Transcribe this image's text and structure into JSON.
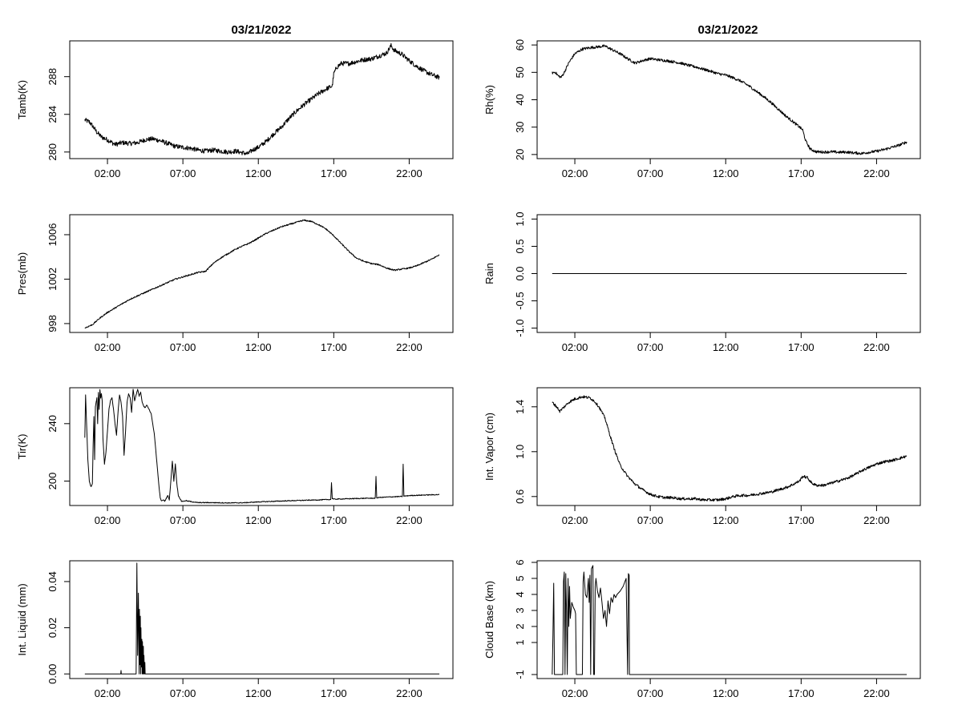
{
  "figure": {
    "columns": [
      {
        "title": "03/21/2022"
      },
      {
        "title": "03/21/2022"
      }
    ]
  },
  "colors": {
    "line": "#000000",
    "frame": "#000000",
    "background": "#ffffff"
  },
  "chart_data": [
    {
      "id": "tamb",
      "column": 0,
      "row": 0,
      "type": "line",
      "title": "03/21/2022",
      "ylabel": "Tamb(K)",
      "xlabel": "",
      "xlim": [
        -0.5,
        24.9
      ],
      "ylim": [
        279.3,
        291.8
      ],
      "xticks": [
        2,
        7,
        12,
        17,
        22
      ],
      "xtick_labels": [
        "02:00",
        "07:00",
        "12:00",
        "17:00",
        "22:00"
      ],
      "yticks": [
        280,
        284,
        288
      ],
      "ytick_labels": [
        "280",
        "284",
        "288"
      ],
      "x": [
        0.5,
        0.8,
        1.0,
        1.3,
        1.6,
        2.0,
        2.5,
        3.0,
        3.5,
        4.0,
        4.5,
        5.0,
        5.5,
        6.0,
        6.5,
        7.0,
        7.5,
        8.0,
        8.5,
        9.0,
        9.5,
        10.0,
        10.5,
        11.0,
        11.3,
        11.6,
        12.0,
        12.5,
        13.0,
        13.5,
        14.0,
        14.5,
        15.0,
        15.5,
        16.0,
        16.5,
        16.9,
        17.0,
        17.2,
        17.5,
        18.0,
        18.5,
        19.0,
        19.5,
        20.0,
        20.5,
        20.8,
        21.0,
        21.5,
        22.0,
        22.5,
        23.0,
        23.5,
        24.0
      ],
      "y": [
        283.4,
        283.2,
        282.8,
        282.1,
        281.6,
        281.3,
        280.8,
        281.0,
        280.9,
        281.0,
        281.3,
        281.4,
        281.2,
        280.9,
        280.6,
        280.5,
        280.4,
        280.2,
        280.1,
        280.2,
        280.1,
        280.0,
        280.1,
        279.9,
        279.8,
        280.2,
        280.5,
        281.1,
        281.9,
        282.6,
        283.5,
        284.3,
        285.0,
        285.6,
        286.2,
        286.7,
        287.0,
        288.3,
        289.0,
        289.4,
        289.4,
        289.6,
        289.8,
        289.9,
        290.2,
        290.5,
        291.3,
        290.8,
        290.4,
        289.7,
        289.1,
        288.6,
        288.2,
        287.9
      ],
      "noise": 0.25
    },
    {
      "id": "rh",
      "column": 1,
      "row": 0,
      "type": "line",
      "title": "03/21/2022",
      "ylabel": "Rh(%)",
      "xlabel": "",
      "xlim": [
        -0.5,
        24.9
      ],
      "ylim": [
        18.5,
        61.5
      ],
      "xticks": [
        2,
        7,
        12,
        17,
        22
      ],
      "xtick_labels": [
        "02:00",
        "07:00",
        "12:00",
        "17:00",
        "22:00"
      ],
      "yticks": [
        20,
        30,
        40,
        50,
        60
      ],
      "ytick_labels": [
        "20",
        "30",
        "40",
        "50",
        "60"
      ],
      "x": [
        0.5,
        0.7,
        0.9,
        1.1,
        1.3,
        1.6,
        2.0,
        2.5,
        3.0,
        3.5,
        4.0,
        4.5,
        5.0,
        5.5,
        6.0,
        6.5,
        7.0,
        7.5,
        8.0,
        8.5,
        9.0,
        9.5,
        10.0,
        10.5,
        11.0,
        11.5,
        12.0,
        12.5,
        13.0,
        13.5,
        14.0,
        14.5,
        15.0,
        15.5,
        16.0,
        16.5,
        16.9,
        17.1,
        17.3,
        17.6,
        18.0,
        18.5,
        19.0,
        19.5,
        20.0,
        20.5,
        21.0,
        21.5,
        22.0,
        22.5,
        23.0,
        23.5,
        24.0
      ],
      "y": [
        49.8,
        50.1,
        48.7,
        48.2,
        50.0,
        53.5,
        56.8,
        58.5,
        59.0,
        59.3,
        59.6,
        58.2,
        56.8,
        55.0,
        53.4,
        54.3,
        55.0,
        54.6,
        54.3,
        53.9,
        53.4,
        52.6,
        52.0,
        51.2,
        50.4,
        49.5,
        49.0,
        48.0,
        46.8,
        45.2,
        43.2,
        41.2,
        39.0,
        36.5,
        34.0,
        31.8,
        30.0,
        29.0,
        25.0,
        22.0,
        21.0,
        20.9,
        21.0,
        20.8,
        20.9,
        20.6,
        20.4,
        20.8,
        21.2,
        21.8,
        22.6,
        23.4,
        24.6
      ],
      "noise": 0.5
    },
    {
      "id": "pres",
      "column": 0,
      "row": 1,
      "type": "line",
      "ylabel": "Pres(mb)",
      "xlabel": "",
      "xlim": [
        -0.5,
        24.9
      ],
      "ylim": [
        997.2,
        1007.8
      ],
      "xticks": [
        2,
        7,
        12,
        17,
        22
      ],
      "xtick_labels": [
        "02:00",
        "07:00",
        "12:00",
        "17:00",
        "22:00"
      ],
      "yticks": [
        998,
        1002,
        1006
      ],
      "ytick_labels": [
        "998",
        "1002",
        "1006"
      ],
      "x": [
        0.5,
        1.0,
        1.5,
        2.0,
        2.5,
        3.0,
        3.5,
        4.0,
        4.5,
        5.0,
        5.5,
        6.0,
        6.5,
        7.0,
        7.5,
        8.0,
        8.5,
        9.0,
        9.5,
        10.0,
        10.5,
        11.0,
        11.5,
        12.0,
        12.5,
        13.0,
        13.5,
        14.0,
        14.5,
        15.0,
        15.5,
        16.0,
        16.5,
        17.0,
        17.5,
        18.0,
        18.5,
        19.0,
        19.5,
        20.0,
        20.5,
        21.0,
        21.5,
        22.0,
        22.5,
        23.0,
        23.5,
        24.0
      ],
      "y": [
        997.6,
        997.9,
        998.5,
        999.0,
        999.4,
        999.8,
        1000.2,
        1000.5,
        1000.8,
        1001.1,
        1001.4,
        1001.7,
        1002.0,
        1002.2,
        1002.4,
        1002.6,
        1002.7,
        1003.4,
        1003.9,
        1004.3,
        1004.7,
        1005.0,
        1005.3,
        1005.7,
        1006.1,
        1006.4,
        1006.7,
        1006.9,
        1007.1,
        1007.3,
        1007.2,
        1006.9,
        1006.5,
        1005.9,
        1005.2,
        1004.5,
        1003.9,
        1003.6,
        1003.4,
        1003.3,
        1003.0,
        1002.8,
        1002.9,
        1003.0,
        1003.2,
        1003.5,
        1003.8,
        1004.2
      ],
      "noise": 0.06
    },
    {
      "id": "rain",
      "column": 1,
      "row": 1,
      "type": "line",
      "ylabel": "Rain",
      "xlabel": "",
      "xlim": [
        -0.5,
        24.9
      ],
      "ylim": [
        -1.08,
        1.08
      ],
      "xticks": [
        2,
        7,
        12,
        17,
        22
      ],
      "xtick_labels": [
        "02:00",
        "07:00",
        "12:00",
        "17:00",
        "22:00"
      ],
      "yticks": [
        -1.0,
        -0.5,
        0.0,
        0.5,
        1.0
      ],
      "ytick_labels": [
        "-1.0",
        "-0.5",
        "0.0",
        "0.5",
        "1.0"
      ],
      "x": [
        0.5,
        24.0
      ],
      "y": [
        0.0,
        0.0
      ],
      "noise": 0
    },
    {
      "id": "tir",
      "column": 0,
      "row": 2,
      "type": "line",
      "ylabel": "Tir(K)",
      "xlabel": "",
      "xlim": [
        -0.5,
        24.9
      ],
      "ylim": [
        183,
        265
      ],
      "xticks": [
        2,
        7,
        12,
        17,
        22
      ],
      "xtick_labels": [
        "02:00",
        "07:00",
        "12:00",
        "17:00",
        "22:00"
      ],
      "yticks": [
        200,
        240
      ],
      "ytick_labels": [
        "200",
        "240"
      ],
      "x": [
        0.5,
        0.55,
        0.6,
        0.7,
        0.8,
        0.9,
        1.0,
        1.05,
        1.1,
        1.15,
        1.2,
        1.3,
        1.35,
        1.4,
        1.45,
        1.5,
        1.55,
        1.6,
        1.65,
        1.7,
        1.8,
        1.9,
        2.0,
        2.1,
        2.2,
        2.3,
        2.4,
        2.5,
        2.6,
        2.7,
        2.8,
        2.9,
        3.0,
        3.1,
        3.2,
        3.3,
        3.4,
        3.5,
        3.6,
        3.7,
        3.8,
        3.9,
        4.0,
        4.1,
        4.2,
        4.3,
        4.4,
        4.5,
        4.6,
        4.7,
        4.8,
        4.9,
        5.0,
        5.1,
        5.2,
        5.3,
        5.4,
        5.5,
        5.6,
        5.7,
        5.8,
        5.9,
        6.0,
        6.1,
        6.2,
        6.3,
        6.4,
        6.5,
        6.6,
        6.7,
        6.8,
        6.9,
        7.0,
        7.1,
        7.2,
        7.3,
        7.4,
        7.5,
        7.6,
        7.7,
        7.8,
        7.85,
        8.0,
        9.0,
        10.0,
        11.0,
        12.0,
        13.0,
        14.0,
        15.0,
        16.0,
        16.8,
        16.85,
        16.9,
        17.0,
        18.0,
        19.0,
        19.75,
        19.8,
        19.85,
        20.0,
        21.0,
        21.55,
        21.6,
        21.65,
        22.0,
        23.0,
        24.0
      ],
      "y": [
        230,
        260,
        245,
        215,
        200,
        196,
        198,
        225,
        245,
        215,
        252,
        258,
        240,
        262,
        250,
        264,
        258,
        261,
        256,
        230,
        212,
        220,
        235,
        250,
        256,
        258,
        250,
        240,
        232,
        248,
        260,
        255,
        245,
        218,
        235,
        255,
        261,
        258,
        248,
        264,
        256,
        260,
        264,
        259,
        262,
        255,
        252,
        251,
        253,
        251,
        249,
        247,
        240,
        233,
        222,
        210,
        198,
        188,
        186,
        187,
        186,
        188,
        190,
        187,
        200,
        214,
        200,
        212,
        198,
        190,
        188,
        186,
        186,
        186,
        186.5,
        186,
        186,
        185.8,
        185.6,
        185.5,
        185.3,
        185.2,
        185.0,
        185.0,
        184.8,
        184.9,
        185.5,
        185.9,
        186.3,
        186.6,
        186.9,
        187.2,
        199,
        188,
        187.4,
        187.7,
        188.0,
        188.1,
        203,
        188.3,
        188.6,
        189.1,
        189.3,
        212,
        189.5,
        189.9,
        190.3,
        190.6
      ],
      "noise": 0.3
    },
    {
      "id": "vapor",
      "column": 1,
      "row": 2,
      "type": "line",
      "ylabel": "Int. Vapor (cm)",
      "xlabel": "",
      "xlim": [
        -0.5,
        24.9
      ],
      "ylim": [
        0.52,
        1.57
      ],
      "xticks": [
        2,
        7,
        12,
        17,
        22
      ],
      "xtick_labels": [
        "02:00",
        "07:00",
        "12:00",
        "17:00",
        "22:00"
      ],
      "yticks": [
        0.6,
        1.0,
        1.4
      ],
      "ytick_labels": [
        "0.6",
        "1.0",
        "1.4"
      ],
      "x": [
        0.5,
        0.8,
        1.0,
        1.3,
        1.6,
        2.0,
        2.5,
        3.0,
        3.3,
        3.6,
        4.0,
        4.3,
        4.6,
        5.0,
        5.5,
        6.0,
        6.5,
        7.0,
        7.5,
        8.0,
        8.5,
        9.0,
        9.5,
        10.0,
        10.5,
        11.0,
        11.5,
        12.0,
        12.5,
        13.0,
        13.5,
        14.0,
        14.5,
        15.0,
        15.5,
        16.0,
        16.5,
        16.9,
        17.1,
        17.4,
        17.7,
        18.0,
        18.5,
        19.0,
        19.5,
        20.0,
        20.5,
        21.0,
        21.5,
        22.0,
        22.5,
        23.0,
        23.5,
        24.0
      ],
      "y": [
        1.44,
        1.4,
        1.36,
        1.4,
        1.44,
        1.47,
        1.49,
        1.48,
        1.45,
        1.4,
        1.3,
        1.16,
        1.03,
        0.88,
        0.78,
        0.71,
        0.66,
        0.62,
        0.6,
        0.59,
        0.59,
        0.58,
        0.58,
        0.58,
        0.57,
        0.57,
        0.57,
        0.58,
        0.6,
        0.61,
        0.61,
        0.62,
        0.63,
        0.64,
        0.66,
        0.68,
        0.71,
        0.74,
        0.78,
        0.77,
        0.72,
        0.7,
        0.7,
        0.72,
        0.74,
        0.76,
        0.79,
        0.83,
        0.86,
        0.89,
        0.91,
        0.92,
        0.94,
        0.96
      ],
      "noise": 0.012
    },
    {
      "id": "liquid",
      "column": 0,
      "row": 3,
      "type": "line",
      "ylabel": "Int. Liquid (mm)",
      "xlabel": "",
      "xlim": [
        -0.5,
        24.9
      ],
      "ylim": [
        -0.002,
        0.049
      ],
      "xticks": [
        2,
        7,
        12,
        17,
        22
      ],
      "xtick_labels": [
        "02:00",
        "07:00",
        "12:00",
        "17:00",
        "22:00"
      ],
      "yticks": [
        0.0,
        0.02,
        0.04
      ],
      "ytick_labels": [
        "0.00",
        "0.02",
        "0.04"
      ],
      "x": [
        0.5,
        2.88,
        2.9,
        2.92,
        3.9,
        3.95,
        4.0,
        4.05,
        4.1,
        4.12,
        4.15,
        4.18,
        4.2,
        4.22,
        4.25,
        4.28,
        4.3,
        4.32,
        4.35,
        4.38,
        4.4,
        4.42,
        4.45,
        4.48,
        4.5,
        4.6,
        24.0
      ],
      "y": [
        0,
        0,
        0.0015,
        0,
        0,
        0.048,
        0.008,
        0.035,
        0,
        0.028,
        0.004,
        0.025,
        0,
        0.02,
        0.003,
        0.015,
        0,
        0.014,
        0,
        0.012,
        0,
        0.008,
        0,
        0.005,
        0,
        0,
        0
      ],
      "noise": 0
    },
    {
      "id": "cloudbase",
      "column": 1,
      "row": 3,
      "type": "line",
      "ylabel": "Cloud Base (km)",
      "xlabel": "",
      "xlim": [
        -0.5,
        24.9
      ],
      "ylim": [
        -1.25,
        6.1
      ],
      "xticks": [
        2,
        7,
        12,
        17,
        22
      ],
      "xtick_labels": [
        "02:00",
        "07:00",
        "12:00",
        "17:00",
        "22:00"
      ],
      "yticks": [
        -1,
        1,
        2,
        3,
        4,
        5,
        6
      ],
      "ytick_labels": [
        "-1",
        "1",
        "2",
        "3",
        "4",
        "5",
        "6"
      ],
      "x": [
        0.5,
        0.55,
        0.6,
        0.65,
        0.7,
        1.2,
        1.25,
        1.3,
        1.35,
        1.4,
        1.45,
        1.5,
        1.55,
        1.6,
        1.65,
        1.7,
        1.8,
        1.9,
        2.0,
        2.05,
        2.1,
        2.5,
        2.55,
        2.6,
        2.7,
        2.8,
        2.9,
        2.95,
        3.0,
        3.05,
        3.1,
        3.2,
        3.25,
        3.3,
        3.35,
        3.4,
        3.5,
        3.6,
        3.7,
        3.8,
        3.9,
        4.0,
        4.1,
        4.2,
        4.3,
        4.4,
        4.5,
        4.6,
        4.7,
        4.8,
        5.0,
        5.2,
        5.4,
        5.5,
        5.55,
        5.6,
        5.62,
        24.0
      ],
      "y": [
        -1,
        1.5,
        4.7,
        -1,
        -1,
        -1,
        4.8,
        5.4,
        -1,
        5.3,
        2.8,
        -1,
        5.0,
        2.0,
        4.5,
        2.5,
        3.5,
        3.2,
        3.0,
        2.8,
        -1,
        -1,
        4.8,
        5.4,
        4.0,
        3.8,
        5.0,
        3.5,
        5.2,
        -1,
        5.6,
        5.8,
        -1,
        -1,
        4.5,
        5.0,
        4.2,
        3.8,
        4.4,
        3.5,
        2.5,
        3.0,
        2.0,
        3.6,
        2.8,
        3.8,
        3.5,
        4.0,
        3.8,
        4.0,
        4.2,
        4.5,
        5.0,
        -1,
        5.3,
        5.2,
        -1,
        -1
      ],
      "noise": 0
    }
  ]
}
